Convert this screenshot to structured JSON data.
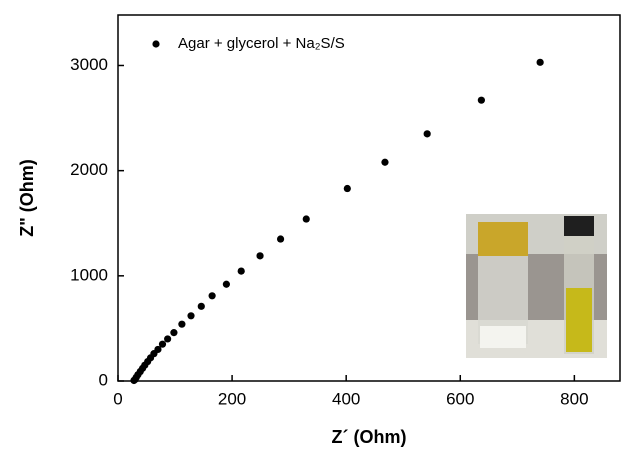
{
  "chart_data": {
    "type": "scatter",
    "x_label": "Z´ (Ohm)",
    "y_label": "Z\" (Ohm)",
    "series": [
      {
        "name": "Agar + glycerol + Na₂S/S",
        "color": "#000000",
        "x": [
          740,
          637,
          542,
          468,
          402,
          330,
          285,
          249,
          216,
          190,
          165,
          146,
          128,
          112,
          98,
          87,
          78,
          70,
          63,
          57,
          52,
          47,
          43,
          39,
          35,
          32,
          30,
          28
        ],
        "values": [
          3030,
          2670,
          2350,
          2080,
          1830,
          1540,
          1350,
          1190,
          1045,
          920,
          810,
          710,
          620,
          540,
          460,
          400,
          350,
          300,
          260,
          220,
          185,
          150,
          120,
          90,
          60,
          35,
          15,
          5
        ]
      }
    ],
    "xlim": [
      0,
      880
    ],
    "xticks": [
      0,
      200,
      400,
      600,
      800
    ],
    "ylim": [
      0,
      3480
    ],
    "yticks": [
      0,
      1000,
      2000,
      3000
    ],
    "grid": false,
    "legend_position": "upper left"
  }
}
